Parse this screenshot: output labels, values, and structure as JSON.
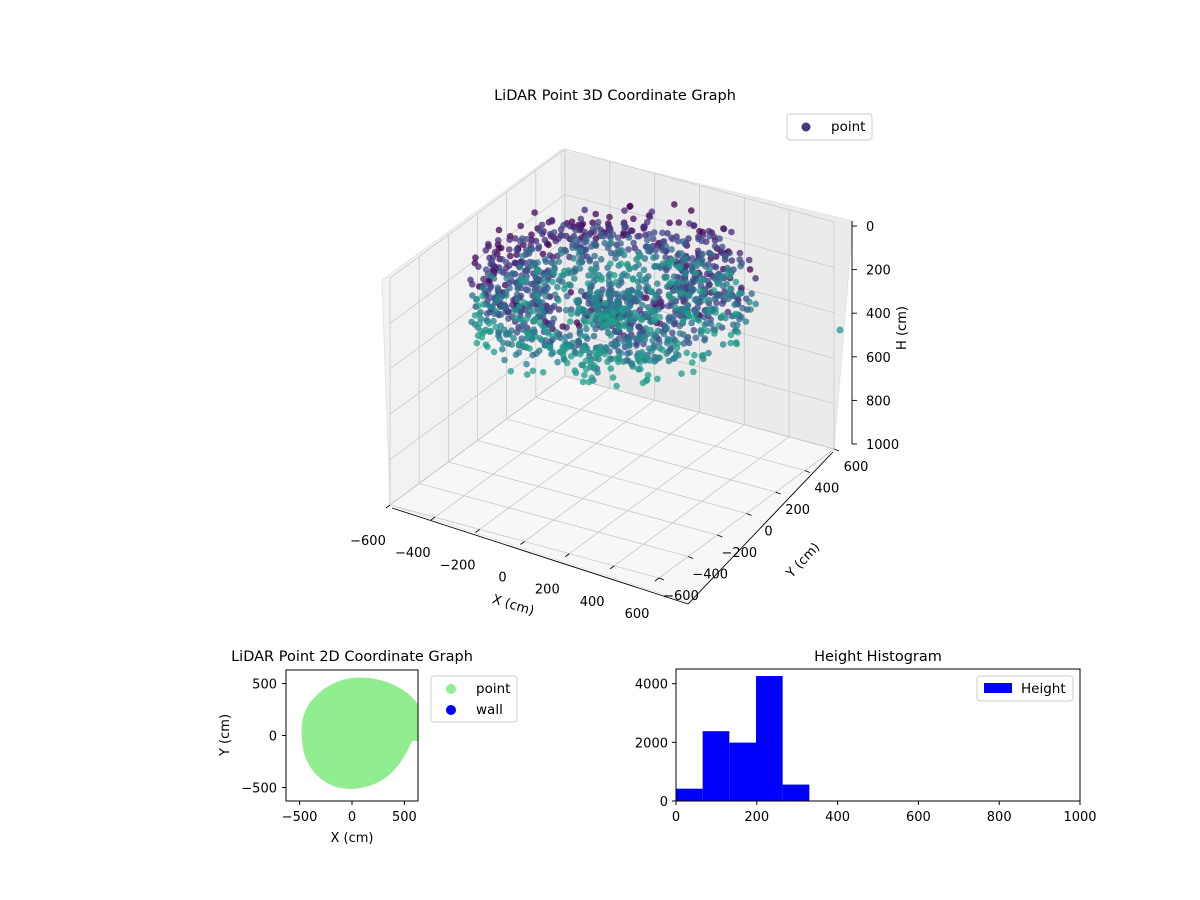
{
  "chart_data": [
    {
      "type": "scatter",
      "title": "LiDAR Point 3D Coordinate Graph",
      "xlabel": "X (cm)",
      "ylabel": "Y (cm)",
      "zlabel": "H (cm)",
      "xlim": [
        -600,
        600
      ],
      "ylim": [
        -600,
        600
      ],
      "zlim": [
        0,
        1000
      ],
      "z_inverted": true,
      "x_ticks": [
        "−600",
        "−400",
        "−200",
        "0",
        "200",
        "400",
        "600"
      ],
      "y_ticks": [
        "−600",
        "−400",
        "−200",
        "0",
        "200",
        "400",
        "600"
      ],
      "z_ticks": [
        "0",
        "200",
        "400",
        "600",
        "800",
        "1000"
      ],
      "legend": {
        "position": "top-right",
        "entries": [
          {
            "label": "point",
            "color": "#433a83"
          }
        ]
      },
      "colormap": "viridis",
      "series": [
        {
          "name": "point",
          "description_of_shape": "ring-shaped point cloud around the origin, heights about 50–330 cm, with a denser cluster near the center"
        }
      ],
      "grid": true
    },
    {
      "type": "scatter",
      "title": "LiDAR Point 2D Coordinate Graph",
      "xlabel": "X (cm)",
      "ylabel": "Y (cm)",
      "xlim": [
        -630,
        630
      ],
      "ylim": [
        -630,
        630
      ],
      "x_ticks": [
        "−500",
        "0",
        "500"
      ],
      "y_ticks": [
        "500",
        "0",
        "−500"
      ],
      "legend": {
        "position": "outside-right",
        "entries": [
          {
            "label": "point",
            "color": "#90ee90"
          },
          {
            "label": "wall",
            "color": "#0000ff"
          }
        ]
      },
      "series": [
        {
          "name": "point",
          "color": "#90ee90",
          "extent": "roughly circular region of radius ~500 cm centered near origin, with a notch at lower right"
        },
        {
          "name": "wall",
          "color": "#0000ff",
          "values": []
        }
      ],
      "grid": false
    },
    {
      "type": "bar",
      "title": "Height Histogram",
      "xlabel": "",
      "ylabel": "",
      "xlim": [
        0,
        1000
      ],
      "ylim": [
        0,
        4500
      ],
      "x_ticks": [
        "0",
        "200",
        "400",
        "600",
        "800",
        "1000"
      ],
      "y_ticks": [
        "0",
        "2000",
        "4000"
      ],
      "bins": [
        {
          "x0": 0,
          "x1": 66,
          "count": 420
        },
        {
          "x0": 66,
          "x1": 132,
          "count": 2380
        },
        {
          "x0": 132,
          "x1": 198,
          "count": 1990
        },
        {
          "x0": 198,
          "x1": 264,
          "count": 4260
        },
        {
          "x0": 264,
          "x1": 330,
          "count": 560
        }
      ],
      "color": "#0000ff",
      "legend": {
        "position": "top-right",
        "entries": [
          {
            "label": "Height",
            "color": "#0000ff"
          }
        ]
      },
      "grid": false
    }
  ]
}
